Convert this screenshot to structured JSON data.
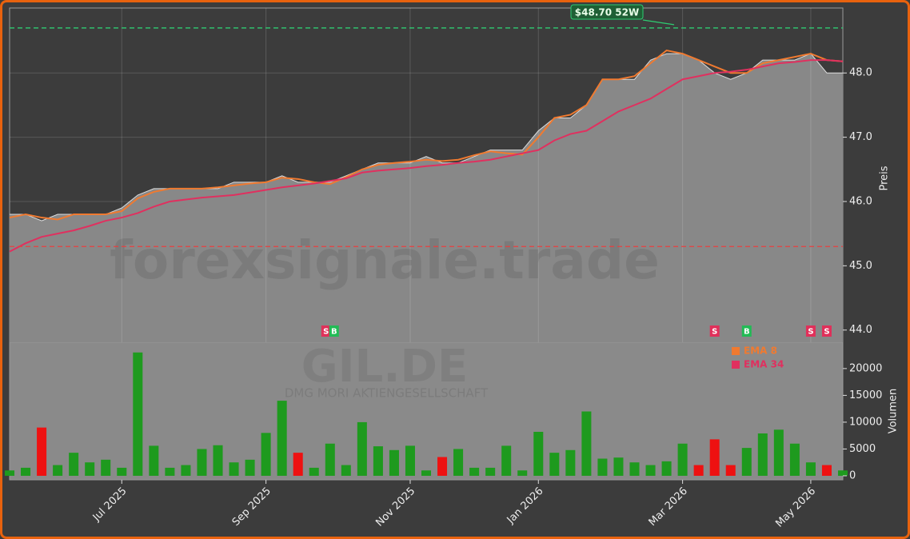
{
  "chart_data": {
    "type": "line",
    "watermark": "forexsignale.trade",
    "ticker": "GIL.DE",
    "company": "DMG MORI AKTIENGESELLSCHAFT",
    "ylabel": "Preis",
    "grid": true,
    "categories": [
      null,
      null,
      null,
      null,
      null,
      null,
      null,
      "Jul 2025",
      null,
      null,
      null,
      null,
      null,
      null,
      null,
      null,
      "Sep 2025",
      null,
      null,
      null,
      null,
      null,
      null,
      null,
      null,
      "Nov 2025",
      null,
      null,
      null,
      null,
      null,
      null,
      null,
      "Jan 2026",
      null,
      null,
      null,
      null,
      null,
      null,
      null,
      null,
      "Mar 2026",
      null,
      null,
      null,
      null,
      null,
      null,
      null,
      "May 2026",
      null,
      null
    ],
    "values": [
      45.8,
      45.8,
      45.7,
      45.8,
      45.8,
      45.8,
      45.8,
      45.9,
      46.1,
      46.2,
      46.2,
      46.2,
      46.2,
      46.2,
      46.3,
      46.3,
      46.3,
      46.4,
      46.3,
      46.3,
      46.3,
      46.4,
      46.5,
      46.6,
      46.6,
      46.6,
      46.7,
      46.6,
      46.6,
      46.7,
      46.8,
      46.8,
      46.8,
      47.1,
      47.3,
      47.3,
      47.5,
      47.9,
      47.9,
      47.9,
      48.2,
      48.3,
      48.3,
      48.2,
      48.0,
      47.9,
      48.0,
      48.2,
      48.2,
      48.2,
      48.3,
      48.0,
      48.0
    ],
    "area_color": "#888888",
    "series": [
      {
        "name": "EMA 8",
        "color": "#f07a30",
        "values": [
          45.75,
          45.8,
          45.75,
          45.72,
          45.8,
          45.8,
          45.8,
          45.85,
          46.05,
          46.15,
          46.2,
          46.2,
          46.2,
          46.22,
          46.25,
          46.28,
          46.3,
          46.37,
          46.35,
          46.3,
          46.27,
          46.38,
          46.5,
          46.57,
          46.6,
          46.62,
          46.65,
          46.63,
          46.65,
          46.72,
          46.78,
          46.75,
          46.73,
          47.0,
          47.3,
          47.35,
          47.5,
          47.9,
          47.9,
          47.95,
          48.15,
          48.35,
          48.3,
          48.2,
          48.1,
          48.0,
          48.0,
          48.15,
          48.2,
          48.25,
          48.3,
          48.2,
          48.18
        ]
      },
      {
        "name": "EMA 34",
        "color": "#e0305f",
        "values": [
          45.22,
          45.35,
          45.45,
          45.5,
          45.55,
          45.62,
          45.7,
          45.75,
          45.82,
          45.92,
          46.0,
          46.03,
          46.06,
          46.08,
          46.1,
          46.14,
          46.18,
          46.22,
          46.25,
          46.28,
          46.32,
          46.36,
          46.45,
          46.48,
          46.5,
          46.52,
          46.55,
          46.57,
          46.6,
          46.62,
          46.65,
          46.7,
          46.75,
          46.8,
          46.95,
          47.05,
          47.1,
          47.25,
          47.4,
          47.5,
          47.6,
          47.75,
          47.9,
          47.95,
          48.0,
          48.02,
          48.05,
          48.1,
          48.15,
          48.17,
          48.2,
          48.2,
          48.18
        ]
      }
    ],
    "ylim": [
      43.81,
      49.01
    ],
    "yticks": [
      {
        "value": 44,
        "label": "44.0"
      },
      {
        "value": 45,
        "label": "45.0"
      },
      {
        "value": 46,
        "label": "46.0"
      },
      {
        "value": 47,
        "label": "47.0"
      },
      {
        "value": 48,
        "label": "48.0"
      }
    ],
    "high_line": {
      "value": 48.7,
      "label": "$48.70 52W",
      "color": "#2ecc71"
    },
    "low_line": {
      "value": 45.3,
      "color": "#e84040"
    },
    "sell_color": "#e0305a",
    "buy_color": "#22bb55",
    "sell": [
      null,
      null,
      null,
      null,
      null,
      null,
      null,
      null,
      null,
      null,
      null,
      null,
      null,
      null,
      null,
      null,
      null,
      null,
      null,
      null,
      "S",
      null,
      null,
      null,
      null,
      null,
      null,
      null,
      null,
      null,
      null,
      null,
      null,
      null,
      null,
      null,
      null,
      null,
      null,
      null,
      null,
      null,
      null,
      null,
      "S",
      null,
      null,
      null,
      null,
      null,
      "S",
      "S",
      null
    ],
    "buy": [
      null,
      null,
      null,
      null,
      null,
      null,
      null,
      null,
      null,
      null,
      null,
      null,
      null,
      null,
      null,
      null,
      null,
      null,
      null,
      null,
      "B",
      null,
      null,
      null,
      null,
      null,
      null,
      null,
      null,
      null,
      null,
      null,
      null,
      null,
      null,
      null,
      null,
      null,
      null,
      null,
      null,
      null,
      null,
      null,
      null,
      null,
      "B",
      null,
      null,
      null,
      null,
      null,
      null
    ],
    "volume": {
      "type": "bar",
      "ylabel": "Volumen",
      "up_color": "#1e9a1e",
      "down_color": "#ee1111",
      "values": [
        1000,
        1500,
        9000,
        2000,
        4300,
        2500,
        3000,
        1500,
        23000,
        5600,
        1500,
        2000,
        5000,
        5700,
        2500,
        3000,
        8000,
        14000,
        4300,
        1500,
        6000,
        2000,
        10000,
        5500,
        4800,
        5600,
        1000,
        3500,
        5000,
        1500,
        1500,
        5600,
        1000,
        8200,
        4300,
        4800,
        12000,
        3200,
        3400,
        2500,
        2000,
        2700,
        6000,
        2000,
        6800,
        2000,
        5200,
        7900,
        8600,
        6000,
        2500,
        2000,
        1000
      ],
      "ylim": [
        -750,
        24900
      ],
      "yticks": [
        0,
        5000,
        10000,
        15000,
        20000
      ]
    }
  }
}
